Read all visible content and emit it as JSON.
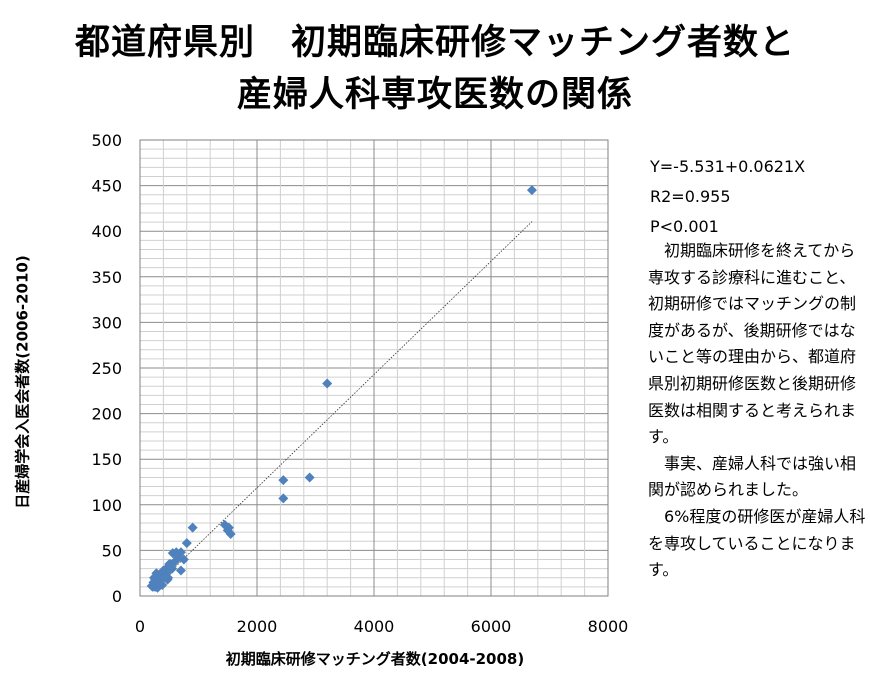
{
  "title_line1": "都道府県別　初期臨床研修マッチング者数と",
  "title_line2": "産婦人科専攻医数の関係",
  "stats": {
    "equation": "Y=-5.531+0.0621X",
    "r2": "R2=0.955",
    "p": "P<0.001"
  },
  "note": {
    "p1": "　初期臨床研修を終えてから専攻する診療科に進むこと、初期研修ではマッチングの制度があるが、後期研修ではないこと等の理由から、都道府県別初期研修医数と後期研修医数は相関すると考えられます。",
    "p2": "　事実、産婦人科では強い相関が認められました。",
    "p3": "　6%程度の研修医が産婦人科を専攻していることになります。"
  },
  "chart_data": {
    "type": "scatter",
    "xlabel": "初期臨床研修マッチング者数(2004-2008)",
    "ylabel": "日産婦学会入医会者数(2006-2010)",
    "xlim": [
      0,
      8000
    ],
    "ylim": [
      0,
      500
    ],
    "xticks": [
      "0",
      "2000",
      "4000",
      "6000",
      "8000"
    ],
    "yticks": [
      "0",
      "50",
      "100",
      "150",
      "200",
      "250",
      "300",
      "350",
      "400",
      "450",
      "500"
    ],
    "grid": true,
    "marker": "diamond",
    "marker_color": "#4f81bd",
    "trendline": {
      "intercept": -5.531,
      "slope": 0.0621,
      "x_range": [
        200,
        6700
      ]
    },
    "points": [
      [
        6700,
        445
      ],
      [
        3200,
        233
      ],
      [
        2900,
        130
      ],
      [
        2450,
        127
      ],
      [
        2450,
        107
      ],
      [
        900,
        75
      ],
      [
        1450,
        78
      ],
      [
        1500,
        72
      ],
      [
        1550,
        68
      ],
      [
        1520,
        75
      ],
      [
        800,
        58
      ],
      [
        750,
        40
      ],
      [
        700,
        48
      ],
      [
        620,
        48
      ],
      [
        560,
        47
      ],
      [
        650,
        42
      ],
      [
        600,
        38
      ],
      [
        520,
        35
      ],
      [
        450,
        30
      ],
      [
        400,
        28
      ],
      [
        380,
        22
      ],
      [
        480,
        20
      ],
      [
        350,
        17
      ],
      [
        300,
        15
      ],
      [
        280,
        25
      ],
      [
        260,
        18
      ],
      [
        250,
        12
      ],
      [
        220,
        10
      ],
      [
        300,
        9
      ],
      [
        200,
        11
      ],
      [
        320,
        13
      ],
      [
        420,
        25
      ],
      [
        550,
        30
      ],
      [
        700,
        28
      ],
      [
        500,
        35
      ],
      [
        240,
        20
      ],
      [
        360,
        18
      ],
      [
        460,
        25
      ],
      [
        340,
        15
      ],
      [
        260,
        10
      ],
      [
        400,
        20
      ],
      [
        230,
        15
      ],
      [
        290,
        12
      ],
      [
        470,
        18
      ],
      [
        380,
        12
      ]
    ]
  }
}
